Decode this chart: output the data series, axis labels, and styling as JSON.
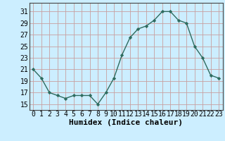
{
  "x": [
    0,
    1,
    2,
    3,
    4,
    5,
    6,
    7,
    8,
    9,
    10,
    11,
    12,
    13,
    14,
    15,
    16,
    17,
    18,
    19,
    20,
    21,
    22,
    23
  ],
  "y": [
    21,
    19.5,
    17,
    16.5,
    16,
    16.5,
    16.5,
    16.5,
    15,
    17,
    19.5,
    23.5,
    26.5,
    28,
    28.5,
    29.5,
    31,
    31,
    29.5,
    29,
    25,
    23,
    20,
    19.5
  ],
  "line_color": "#2e6b5e",
  "marker": "D",
  "marker_size": 2.2,
  "bg_color": "#cceeff",
  "grid_color": "#c8a0a0",
  "ylabel_ticks": [
    15,
    17,
    19,
    21,
    23,
    25,
    27,
    29,
    31
  ],
  "xlabel": "Humidex (Indice chaleur)",
  "xlim": [
    -0.5,
    23.5
  ],
  "ylim": [
    14.0,
    32.5
  ],
  "xticks": [
    0,
    1,
    2,
    3,
    4,
    5,
    6,
    7,
    8,
    9,
    10,
    11,
    12,
    13,
    14,
    15,
    16,
    17,
    18,
    19,
    20,
    21,
    22,
    23
  ],
  "xlabel_fontsize": 8,
  "tick_fontsize": 7,
  "line_width": 1.0
}
